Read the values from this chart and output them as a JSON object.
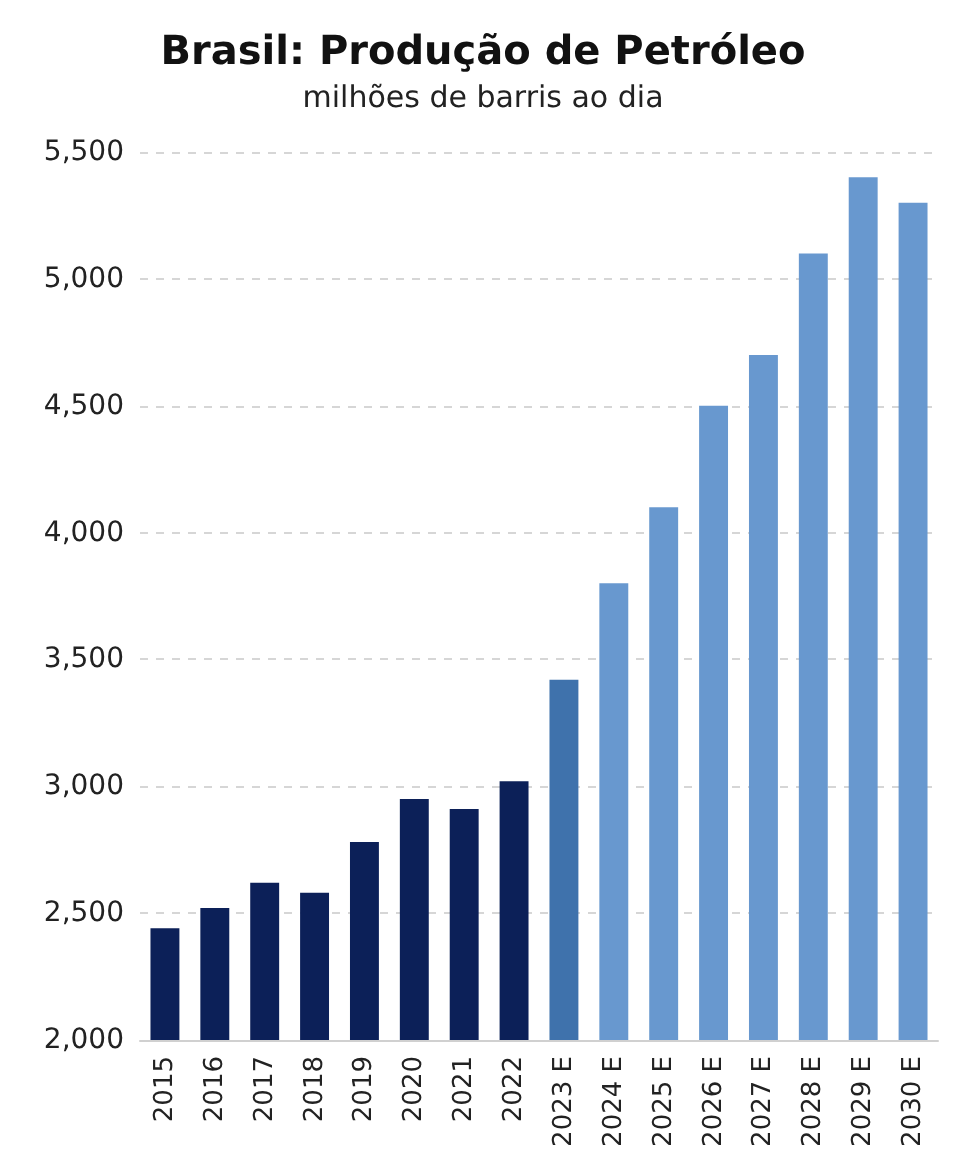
{
  "chart_data": {
    "type": "bar",
    "title": "Brasil: Produção de Petróleo",
    "subtitle": "milhões de barris ao dia",
    "categories": [
      "2015",
      "2016",
      "2017",
      "2018",
      "2019",
      "2020",
      "2021",
      "2022",
      "2023 E",
      "2024 E",
      "2025 E",
      "2026 E",
      "2027 E",
      "2028 E",
      "2029 E",
      "2030 E"
    ],
    "values": [
      2440,
      2520,
      2620,
      2580,
      2780,
      2950,
      2910,
      3020,
      3420,
      3800,
      4100,
      4500,
      4700,
      5100,
      5400,
      5300
    ],
    "colors": [
      "#0c2058",
      "#0c2058",
      "#0c2058",
      "#0c2058",
      "#0c2058",
      "#0c2058",
      "#0c2058",
      "#0c2058",
      "#3f72ac",
      "#6898cf",
      "#6898cf",
      "#6898cf",
      "#6898cf",
      "#6898cf",
      "#6898cf",
      "#6898cf"
    ],
    "ylim": [
      2000,
      5500
    ],
    "yticks": [
      {
        "value": 2000,
        "label": "2,000"
      },
      {
        "value": 2500,
        "label": "2,500"
      },
      {
        "value": 3000,
        "label": "3,000"
      },
      {
        "value": 3500,
        "label": "3,500"
      },
      {
        "value": 4000,
        "label": "4,000"
      },
      {
        "value": 4500,
        "label": "4,500"
      },
      {
        "value": 5000,
        "label": "5,000"
      },
      {
        "value": 5500,
        "label": "5,500"
      }
    ],
    "grid": "y"
  }
}
